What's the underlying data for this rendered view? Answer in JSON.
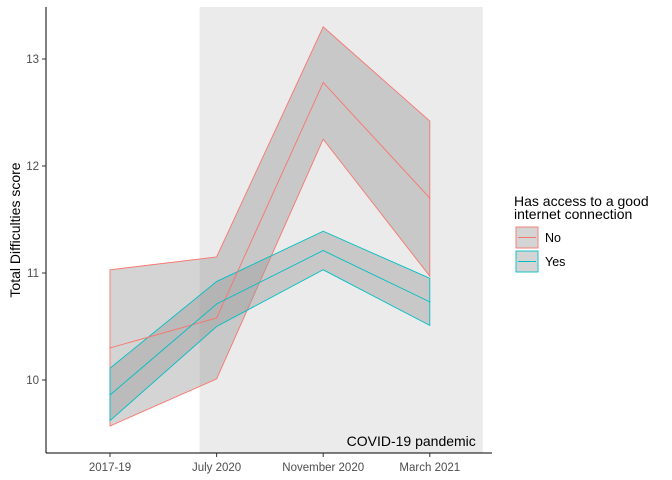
{
  "chart_data": {
    "type": "area",
    "categories": [
      "2017-19",
      "July 2020",
      "November 2020",
      "March 2021"
    ],
    "xlabel": "",
    "ylabel": "Total Difficulties score",
    "ylim": [
      9.5,
      13.5
    ],
    "yticks": [
      10,
      11,
      12,
      13
    ],
    "grid": false,
    "shaded_region": {
      "from": "July 2020",
      "to": "March 2021",
      "label": "COVID-19 pandemic"
    },
    "legend": {
      "title_lines": [
        "Has access to a good",
        "internet connection"
      ],
      "placement": "right"
    },
    "series": [
      {
        "name": "No",
        "color": "#F8766D",
        "values": [
          10.3,
          10.58,
          12.78,
          11.7
        ],
        "lower": [
          9.57,
          10.01,
          12.25,
          10.97
        ],
        "upper": [
          11.03,
          11.15,
          13.3,
          12.42
        ]
      },
      {
        "name": "Yes",
        "color": "#00BFC4",
        "values": [
          9.86,
          10.71,
          11.21,
          10.73
        ],
        "lower": [
          9.62,
          10.5,
          11.03,
          10.51
        ],
        "upper": [
          10.11,
          10.92,
          11.39,
          10.95
        ]
      }
    ]
  }
}
